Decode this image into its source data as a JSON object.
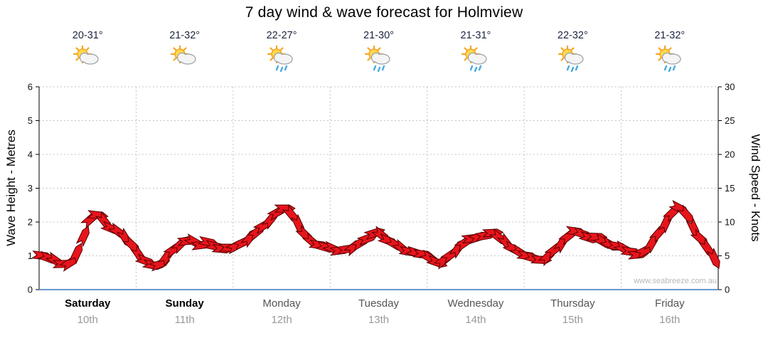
{
  "title": "7 day wind & wave forecast for Holmview",
  "watermark": "www.seabreeze.com.au",
  "axes": {
    "left_label": "Wave Height - Metres",
    "right_label": "Wind Speed - Knots",
    "left_ticks": [
      "0",
      "1",
      "2",
      "3",
      "4",
      "5",
      "6"
    ],
    "right_ticks": [
      "0",
      "5",
      "10",
      "15",
      "20",
      "25",
      "30"
    ]
  },
  "days": [
    {
      "name": "Saturday",
      "date": "10th",
      "temp": "20-31°",
      "icon": "sun-cloud",
      "weekend": true
    },
    {
      "name": "Sunday",
      "date": "11th",
      "temp": "21-32°",
      "icon": "sun-cloud",
      "weekend": true
    },
    {
      "name": "Monday",
      "date": "12th",
      "temp": "22-27°",
      "icon": "sun-cloud-rain",
      "weekend": false
    },
    {
      "name": "Tuesday",
      "date": "13th",
      "temp": "21-30°",
      "icon": "sun-cloud-rain",
      "weekend": false
    },
    {
      "name": "Wednesday",
      "date": "14th",
      "temp": "21-31°",
      "icon": "sun-cloud-rain",
      "weekend": false
    },
    {
      "name": "Thursday",
      "date": "15th",
      "temp": "22-32°",
      "icon": "sun-cloud-rain",
      "weekend": false
    },
    {
      "name": "Friday",
      "date": "16th",
      "temp": "21-32°",
      "icon": "sun-cloud-rain",
      "weekend": false
    }
  ],
  "chart_data": {
    "type": "line",
    "marker": "directional-wind-arrows",
    "title": "7 day wind & wave forecast for Holmview",
    "categories": [
      "Saturday 10th",
      "Sunday 11th",
      "Monday 12th",
      "Tuesday 13th",
      "Wednesday 14th",
      "Thursday 15th",
      "Friday 16th"
    ],
    "points_per_day": 14,
    "ylabel_left": "Wave Height - Metres",
    "ylabel_right": "Wind Speed - Knots",
    "ylim_metres": [
      0,
      6
    ],
    "ylim_knots": [
      0,
      30
    ],
    "grid": true,
    "series": [
      {
        "name": "Wind Speed (knots)",
        "values_knots": [
          5.0,
          4.6,
          4.2,
          3.8,
          4.0,
          5.5,
          8.0,
          10.5,
          11.0,
          10.0,
          9.0,
          8.5,
          7.5,
          6.5,
          5.0,
          4.2,
          3.6,
          3.8,
          5.0,
          6.0,
          6.8,
          7.2,
          7.0,
          6.6,
          7.0,
          6.4,
          6.0,
          6.2,
          6.5,
          7.0,
          7.8,
          8.6,
          9.5,
          10.5,
          11.5,
          12.0,
          11.0,
          9.5,
          8.0,
          7.0,
          6.6,
          6.2,
          6.0,
          5.8,
          6.0,
          6.4,
          7.0,
          7.6,
          8.4,
          8.0,
          7.2,
          6.6,
          6.0,
          5.6,
          5.4,
          5.2,
          4.6,
          4.0,
          4.4,
          5.2,
          6.2,
          7.0,
          7.6,
          7.8,
          8.0,
          8.4,
          7.6,
          6.8,
          6.0,
          5.4,
          5.0,
          4.6,
          4.4,
          5.0,
          6.0,
          7.0,
          8.0,
          8.6,
          8.2,
          7.6,
          7.8,
          7.0,
          6.6,
          6.4,
          6.0,
          5.6,
          5.2,
          5.8,
          7.0,
          8.5,
          10.0,
          11.5,
          12.0,
          11.0,
          9.0,
          7.5,
          6.0,
          4.5
        ]
      }
    ],
    "colors": {
      "arrow_fill": "#e8141c",
      "arrow_stroke": "#550000",
      "baseline": "#6699cc",
      "gridline": "#c4c4c4"
    }
  }
}
